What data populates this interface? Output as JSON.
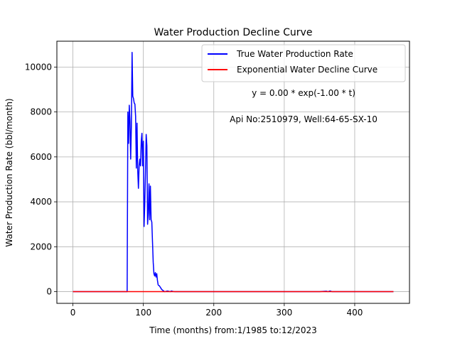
{
  "chart_data": {
    "type": "line",
    "title": "Water Production Decline Curve",
    "xlabel": "Time (months) from:1/1985 to:12/2023",
    "ylabel": "Water Production Rate (bbl/month)",
    "xlim": [
      -22.75,
      477.75
    ],
    "ylim": [
      -520,
      11150
    ],
    "xticks": [
      0,
      100,
      200,
      300,
      400
    ],
    "yticks": [
      0,
      2000,
      4000,
      6000,
      8000,
      10000
    ],
    "grid": true,
    "legend_position": "top-right",
    "annotations": [
      "y = 0.00 * exp(-1.00 * t)",
      "Api No:2510979, Well:64-65-SX-10"
    ],
    "series": [
      {
        "name": "True Water Production Rate",
        "color": "#0000ff",
        "x": [
          0,
          10,
          20,
          30,
          40,
          50,
          60,
          70,
          76,
          77,
          78,
          79,
          80,
          81,
          82,
          83,
          84,
          85,
          86,
          87,
          88,
          89,
          90,
          91,
          92,
          93,
          94,
          95,
          96,
          97,
          98,
          99,
          100,
          101,
          102,
          103,
          104,
          105,
          106,
          107,
          108,
          109,
          110,
          111,
          112,
          113,
          114,
          115,
          116,
          117,
          118,
          119,
          120,
          121,
          122,
          123,
          124,
          125,
          126,
          128,
          130,
          132,
          134,
          136,
          138,
          140,
          142,
          145,
          150,
          155,
          160,
          170,
          180,
          200,
          250,
          300,
          330,
          350,
          360,
          362,
          365,
          368,
          370,
          380,
          400,
          420,
          440,
          455
        ],
        "y": [
          0,
          0,
          0,
          0,
          0,
          0,
          0,
          0,
          0,
          0,
          8000,
          6600,
          8300,
          7600,
          5900,
          7400,
          10650,
          8700,
          8600,
          8400,
          8350,
          7800,
          5500,
          7500,
          5400,
          4600,
          5600,
          5900,
          5600,
          6700,
          7050,
          5600,
          6700,
          2900,
          3900,
          5300,
          7000,
          6500,
          3000,
          3500,
          4800,
          3200,
          4700,
          3200,
          3100,
          2200,
          1300,
          800,
          700,
          850,
          650,
          800,
          500,
          300,
          280,
          250,
          200,
          150,
          100,
          50,
          0,
          10,
          30,
          20,
          0,
          30,
          10,
          0,
          0,
          0,
          0,
          0,
          0,
          0,
          0,
          0,
          0,
          0,
          20,
          0,
          30,
          0,
          0,
          0,
          0,
          0,
          0,
          0
        ]
      },
      {
        "name": "Exponential Water Decline Curve",
        "color": "#ff0000",
        "x": [
          0,
          455
        ],
        "y": [
          0,
          0
        ]
      }
    ]
  }
}
